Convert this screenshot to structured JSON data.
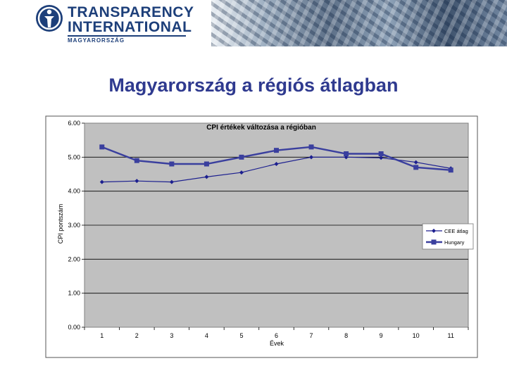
{
  "header": {
    "logo_line1": "TRANSPARENCY",
    "logo_line2": "INTERNATIONAL",
    "logo_sub": "MAGYARORSZÁG",
    "logo_icon": "transparency-international-logo-icon"
  },
  "slide": {
    "title": "Magyarország a régiós átlagban"
  },
  "chart_data": {
    "type": "line",
    "title": "CPI értékek változása a régióban",
    "xlabel": "Évek",
    "ylabel": "CPI pontszám",
    "x": [
      1,
      2,
      3,
      4,
      5,
      6,
      7,
      8,
      9,
      10,
      11
    ],
    "x_tick_labels": [
      "1",
      "2",
      "3",
      "4",
      "5",
      "6",
      "7",
      "8",
      "9",
      "10",
      "11"
    ],
    "y_tick_labels": [
      "0.00",
      "1.00",
      "2.00",
      "3.00",
      "4.00",
      "5.00",
      "6.00"
    ],
    "ylim": [
      0,
      6
    ],
    "grid": "horizontal",
    "legend_position": "right",
    "series": [
      {
        "name": "CEE átlag",
        "marker": "diamond",
        "color": "#1c1f8f",
        "values": [
          4.27,
          4.3,
          4.27,
          4.42,
          4.55,
          4.8,
          5.0,
          5.0,
          4.98,
          4.85,
          4.67
        ]
      },
      {
        "name": "Hungary",
        "marker": "square",
        "color": "#3a3f9e",
        "values": [
          5.3,
          4.9,
          4.8,
          4.8,
          5.0,
          5.2,
          5.3,
          5.1,
          5.1,
          4.7,
          4.62
        ]
      }
    ]
  }
}
